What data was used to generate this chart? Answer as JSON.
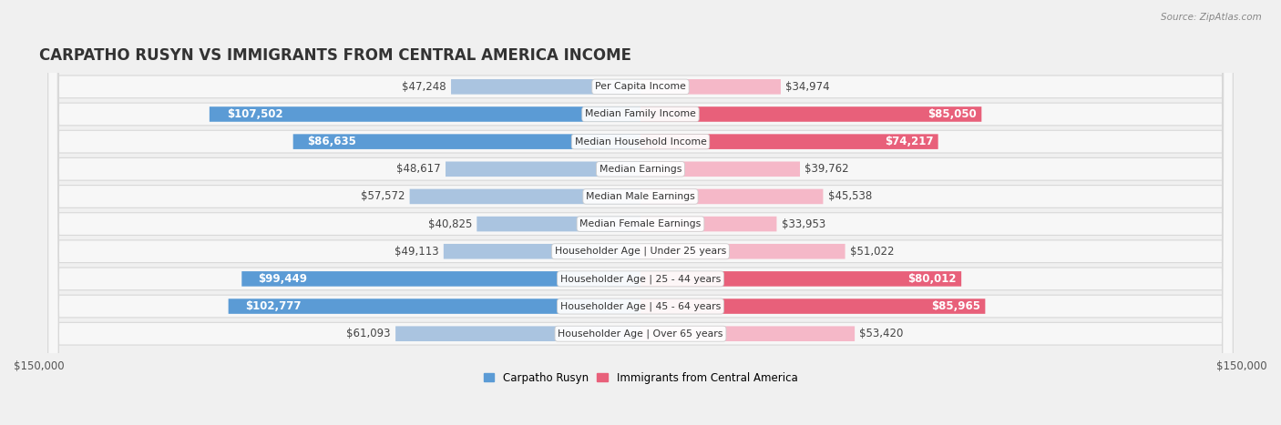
{
  "title": "CARPATHO RUSYN VS IMMIGRANTS FROM CENTRAL AMERICA INCOME",
  "source": "Source: ZipAtlas.com",
  "categories": [
    "Per Capita Income",
    "Median Family Income",
    "Median Household Income",
    "Median Earnings",
    "Median Male Earnings",
    "Median Female Earnings",
    "Householder Age | Under 25 years",
    "Householder Age | 25 - 44 years",
    "Householder Age | 45 - 64 years",
    "Householder Age | Over 65 years"
  ],
  "left_values": [
    47248,
    107502,
    86635,
    48617,
    57572,
    40825,
    49113,
    99449,
    102777,
    61093
  ],
  "right_values": [
    34974,
    85050,
    74217,
    39762,
    45538,
    33953,
    51022,
    80012,
    85965,
    53420
  ],
  "left_labels": [
    "$47,248",
    "$107,502",
    "$86,635",
    "$48,617",
    "$57,572",
    "$40,825",
    "$49,113",
    "$99,449",
    "$102,777",
    "$61,093"
  ],
  "right_labels": [
    "$34,974",
    "$85,050",
    "$74,217",
    "$39,762",
    "$45,538",
    "$33,953",
    "$51,022",
    "$80,012",
    "$85,965",
    "$53,420"
  ],
  "left_color_light": "#aac4e0",
  "left_color_dark": "#5b9bd5",
  "right_color_light": "#f5b8c8",
  "right_color_dark": "#e8607a",
  "max_value": 150000,
  "left_legend": "Carpatho Rusyn",
  "right_legend": "Immigrants from Central America",
  "background_color": "#f0f0f0",
  "row_bg": "#f7f7f7",
  "row_border": "#d8d8d8",
  "threshold_white_label": 72000,
  "title_fontsize": 12,
  "label_fontsize": 8.5,
  "cat_fontsize": 7.8,
  "tick_fontsize": 8.5
}
